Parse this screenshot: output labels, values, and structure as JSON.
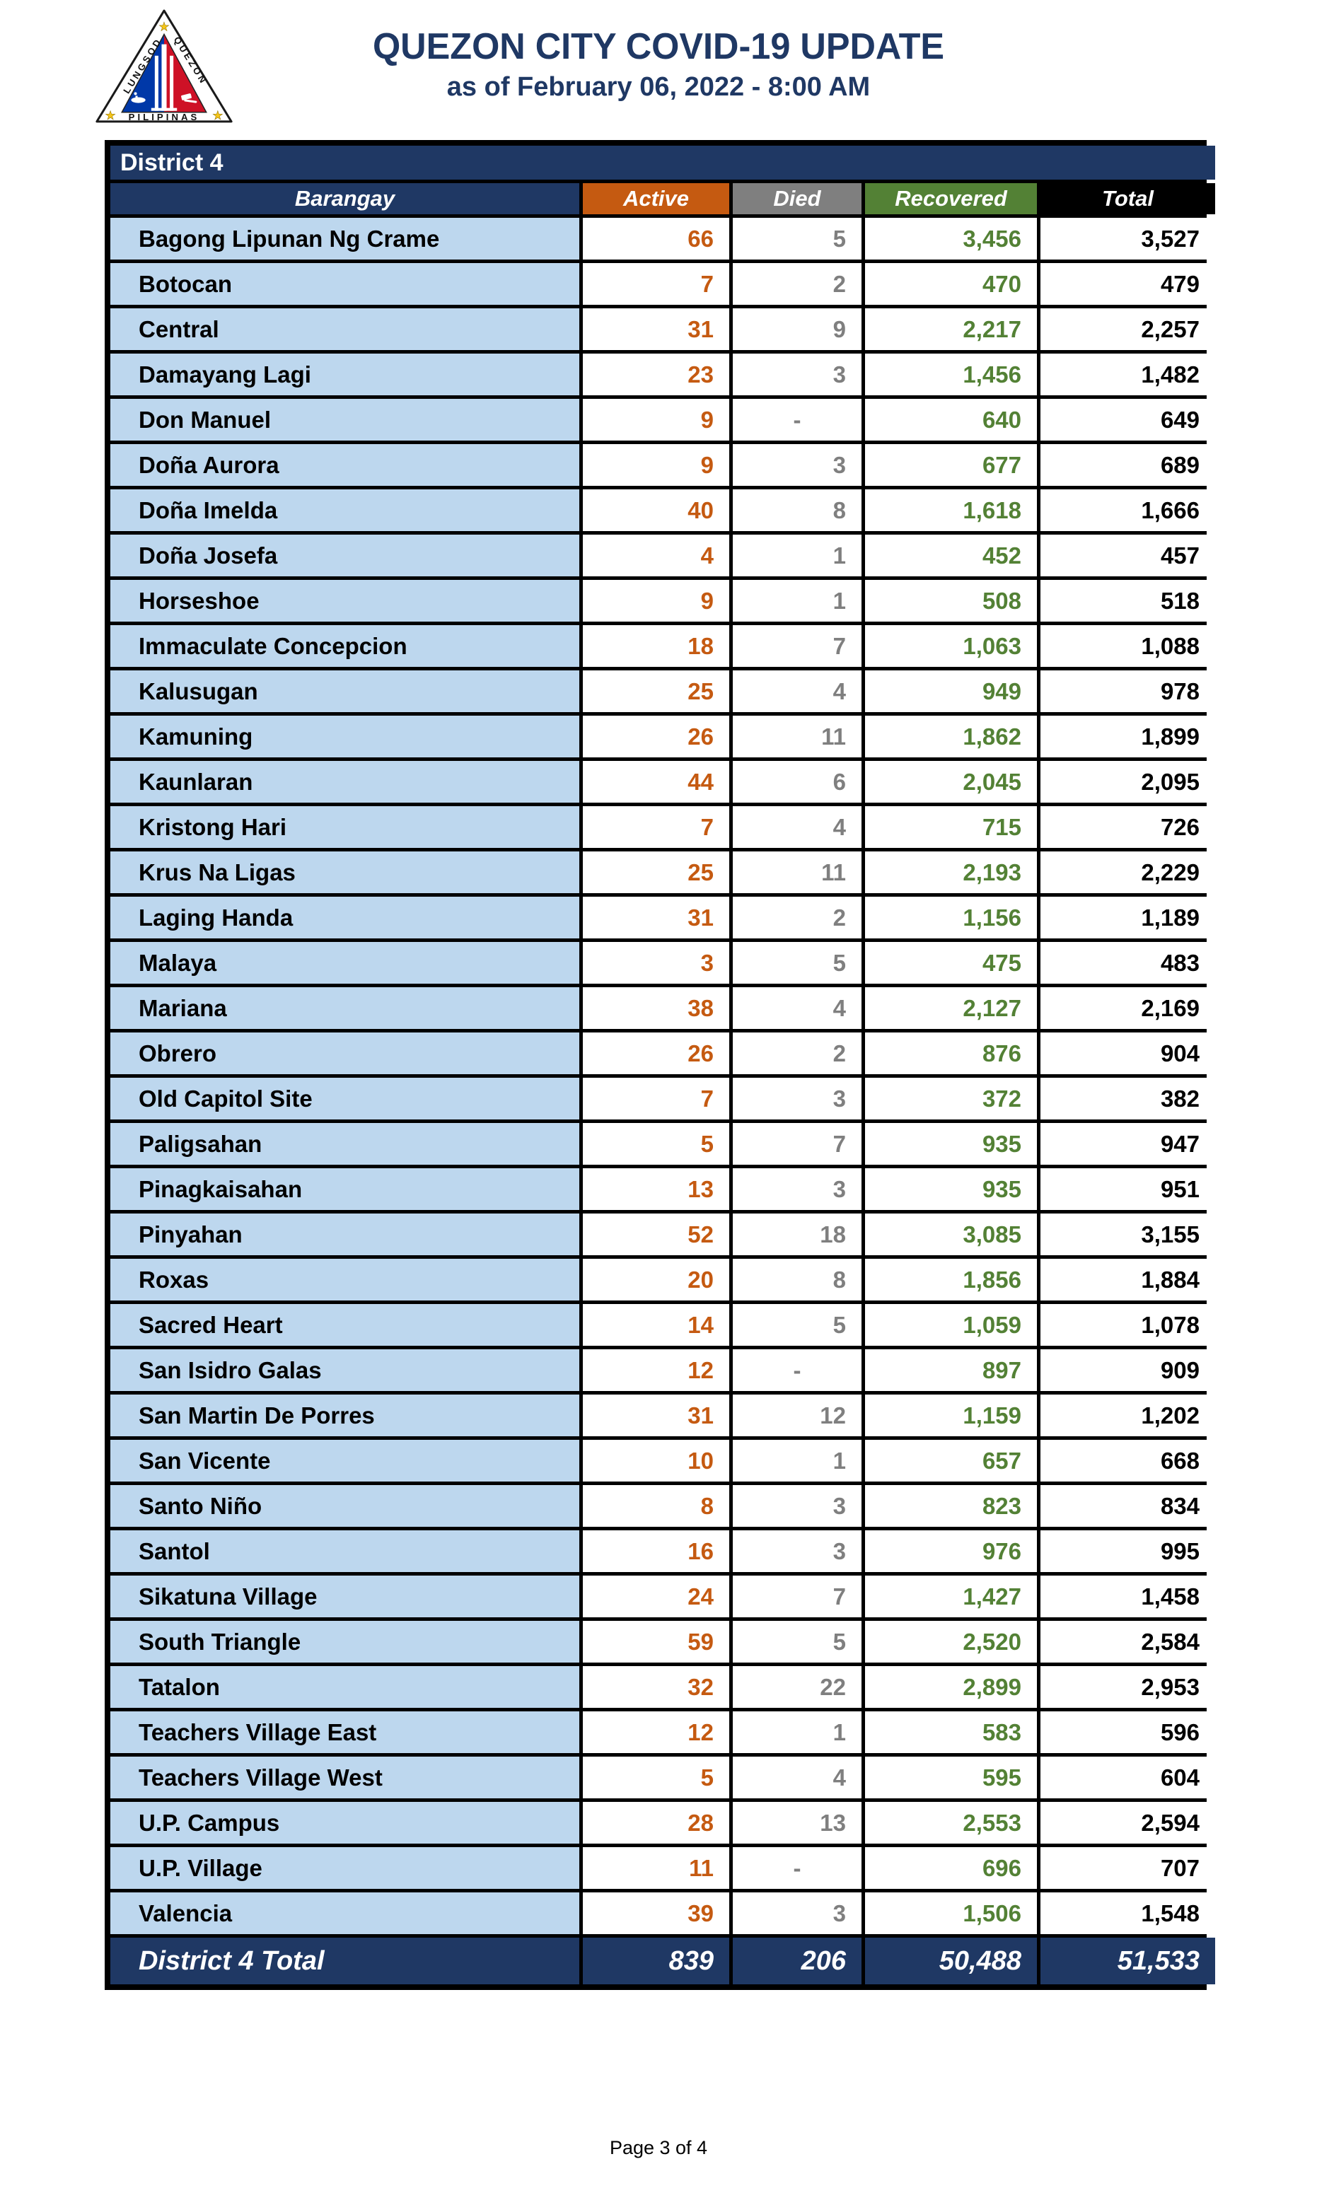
{
  "page": {
    "title": "QUEZON CITY COVID-19 UPDATE",
    "subtitle": "as of February 06, 2022 - 8:00 AM",
    "footer": "Page 3 of 4"
  },
  "logo": {
    "text_left": "LUNGSOD",
    "text_right": "QUEZON",
    "text_bottom": "PILIPINAS"
  },
  "colors": {
    "navy": "#1F3864",
    "orange": "#C55A11",
    "gray": "#7F7F7F",
    "green": "#538135",
    "light_blue": "#BDD7EE",
    "black": "#000000",
    "flag_blue": "#0038A8",
    "flag_red": "#CE1126",
    "star_gold": "#F5C518"
  },
  "table": {
    "district_label": "District 4",
    "columns": [
      "Barangay",
      "Active",
      "Died",
      "Recovered",
      "Total"
    ],
    "rows": [
      {
        "barangay": "Bagong Lipunan Ng Crame",
        "active": "66",
        "died": "5",
        "recovered": "3,456",
        "total": "3,527"
      },
      {
        "barangay": "Botocan",
        "active": "7",
        "died": "2",
        "recovered": "470",
        "total": "479"
      },
      {
        "barangay": "Central",
        "active": "31",
        "died": "9",
        "recovered": "2,217",
        "total": "2,257"
      },
      {
        "barangay": "Damayang Lagi",
        "active": "23",
        "died": "3",
        "recovered": "1,456",
        "total": "1,482"
      },
      {
        "barangay": "Don Manuel",
        "active": "9",
        "died": "-",
        "recovered": "640",
        "total": "649"
      },
      {
        "barangay": "Doña Aurora",
        "active": "9",
        "died": "3",
        "recovered": "677",
        "total": "689"
      },
      {
        "barangay": "Doña Imelda",
        "active": "40",
        "died": "8",
        "recovered": "1,618",
        "total": "1,666"
      },
      {
        "barangay": "Doña Josefa",
        "active": "4",
        "died": "1",
        "recovered": "452",
        "total": "457"
      },
      {
        "barangay": "Horseshoe",
        "active": "9",
        "died": "1",
        "recovered": "508",
        "total": "518"
      },
      {
        "barangay": "Immaculate Concepcion",
        "active": "18",
        "died": "7",
        "recovered": "1,063",
        "total": "1,088"
      },
      {
        "barangay": "Kalusugan",
        "active": "25",
        "died": "4",
        "recovered": "949",
        "total": "978"
      },
      {
        "barangay": "Kamuning",
        "active": "26",
        "died": "11",
        "recovered": "1,862",
        "total": "1,899"
      },
      {
        "barangay": "Kaunlaran",
        "active": "44",
        "died": "6",
        "recovered": "2,045",
        "total": "2,095"
      },
      {
        "barangay": "Kristong Hari",
        "active": "7",
        "died": "4",
        "recovered": "715",
        "total": "726"
      },
      {
        "barangay": "Krus Na Ligas",
        "active": "25",
        "died": "11",
        "recovered": "2,193",
        "total": "2,229"
      },
      {
        "barangay": "Laging Handa",
        "active": "31",
        "died": "2",
        "recovered": "1,156",
        "total": "1,189"
      },
      {
        "barangay": "Malaya",
        "active": "3",
        "died": "5",
        "recovered": "475",
        "total": "483"
      },
      {
        "barangay": "Mariana",
        "active": "38",
        "died": "4",
        "recovered": "2,127",
        "total": "2,169"
      },
      {
        "barangay": "Obrero",
        "active": "26",
        "died": "2",
        "recovered": "876",
        "total": "904"
      },
      {
        "barangay": "Old Capitol Site",
        "active": "7",
        "died": "3",
        "recovered": "372",
        "total": "382"
      },
      {
        "barangay": "Paligsahan",
        "active": "5",
        "died": "7",
        "recovered": "935",
        "total": "947"
      },
      {
        "barangay": "Pinagkaisahan",
        "active": "13",
        "died": "3",
        "recovered": "935",
        "total": "951"
      },
      {
        "barangay": "Pinyahan",
        "active": "52",
        "died": "18",
        "recovered": "3,085",
        "total": "3,155"
      },
      {
        "barangay": "Roxas",
        "active": "20",
        "died": "8",
        "recovered": "1,856",
        "total": "1,884"
      },
      {
        "barangay": "Sacred Heart",
        "active": "14",
        "died": "5",
        "recovered": "1,059",
        "total": "1,078"
      },
      {
        "barangay": "San Isidro Galas",
        "active": "12",
        "died": "-",
        "recovered": "897",
        "total": "909"
      },
      {
        "barangay": "San Martin De Porres",
        "active": "31",
        "died": "12",
        "recovered": "1,159",
        "total": "1,202"
      },
      {
        "barangay": "San Vicente",
        "active": "10",
        "died": "1",
        "recovered": "657",
        "total": "668"
      },
      {
        "barangay": "Santo Niño",
        "active": "8",
        "died": "3",
        "recovered": "823",
        "total": "834"
      },
      {
        "barangay": "Santol",
        "active": "16",
        "died": "3",
        "recovered": "976",
        "total": "995"
      },
      {
        "barangay": "Sikatuna Village",
        "active": "24",
        "died": "7",
        "recovered": "1,427",
        "total": "1,458"
      },
      {
        "barangay": "South Triangle",
        "active": "59",
        "died": "5",
        "recovered": "2,520",
        "total": "2,584"
      },
      {
        "barangay": "Tatalon",
        "active": "32",
        "died": "22",
        "recovered": "2,899",
        "total": "2,953"
      },
      {
        "barangay": "Teachers Village East",
        "active": "12",
        "died": "1",
        "recovered": "583",
        "total": "596"
      },
      {
        "barangay": "Teachers Village West",
        "active": "5",
        "died": "4",
        "recovered": "595",
        "total": "604"
      },
      {
        "barangay": "U.P. Campus",
        "active": "28",
        "died": "13",
        "recovered": "2,553",
        "total": "2,594"
      },
      {
        "barangay": "U.P. Village",
        "active": "11",
        "died": "-",
        "recovered": "696",
        "total": "707"
      },
      {
        "barangay": "Valencia",
        "active": "39",
        "died": "3",
        "recovered": "1,506",
        "total": "1,548"
      }
    ],
    "total_row": {
      "label": "District 4 Total",
      "active": "839",
      "died": "206",
      "recovered": "50,488",
      "total": "51,533"
    }
  }
}
